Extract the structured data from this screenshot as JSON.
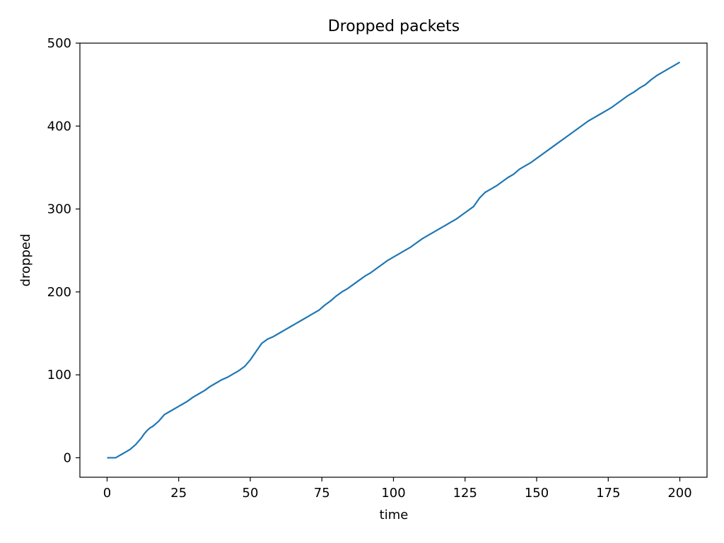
{
  "chart_data": {
    "type": "line",
    "title": "Dropped packets",
    "xlabel": "time",
    "ylabel": "dropped",
    "xlim": [
      -9.5,
      209.5
    ],
    "ylim": [
      -23.5,
      500
    ],
    "xticks": [
      0,
      25,
      50,
      75,
      100,
      125,
      150,
      175,
      200
    ],
    "yticks": [
      0,
      100,
      200,
      300,
      400,
      500
    ],
    "grid": false,
    "line_color": "#1f77b4",
    "series": [
      {
        "x": [
          0,
          1,
          2,
          3,
          4,
          5,
          6,
          7,
          8,
          9,
          10,
          11,
          12,
          13,
          14,
          15,
          16,
          17,
          18,
          19,
          20,
          22,
          24,
          26,
          28,
          30,
          32,
          34,
          36,
          38,
          40,
          42,
          44,
          46,
          48,
          50,
          52,
          54,
          56,
          58,
          60,
          62,
          64,
          66,
          68,
          70,
          72,
          74,
          76,
          78,
          80,
          82,
          84,
          86,
          88,
          90,
          92,
          94,
          96,
          98,
          100,
          102,
          104,
          106,
          108,
          110,
          112,
          114,
          116,
          118,
          120,
          122,
          124,
          126,
          128,
          130,
          132,
          134,
          136,
          138,
          140,
          142,
          144,
          146,
          148,
          150,
          152,
          154,
          156,
          158,
          160,
          162,
          164,
          166,
          168,
          170,
          172,
          174,
          176,
          178,
          180,
          182,
          184,
          186,
          188,
          190,
          192,
          194,
          196,
          198,
          200
        ],
        "y": [
          0,
          0,
          0,
          0,
          2,
          4,
          6,
          8,
          10,
          13,
          16,
          20,
          24,
          29,
          33,
          36,
          38,
          41,
          44,
          48,
          52,
          56,
          60,
          64,
          68,
          73,
          77,
          81,
          86,
          90,
          94,
          97,
          101,
          105,
          110,
          118,
          128,
          138,
          143,
          146,
          150,
          154,
          158,
          162,
          166,
          170,
          174,
          178,
          184,
          189,
          195,
          200,
          204,
          209,
          214,
          219,
          223,
          228,
          233,
          238,
          242,
          246,
          250,
          254,
          259,
          264,
          268,
          272,
          276,
          280,
          284,
          288,
          293,
          298,
          303,
          313,
          320,
          324,
          328,
          333,
          338,
          342,
          348,
          352,
          356,
          361,
          366,
          371,
          376,
          381,
          386,
          391,
          396,
          401,
          406,
          410,
          414,
          418,
          422,
          427,
          432,
          437,
          441,
          446,
          450,
          456,
          461,
          465,
          469,
          473,
          477
        ]
      }
    ]
  }
}
